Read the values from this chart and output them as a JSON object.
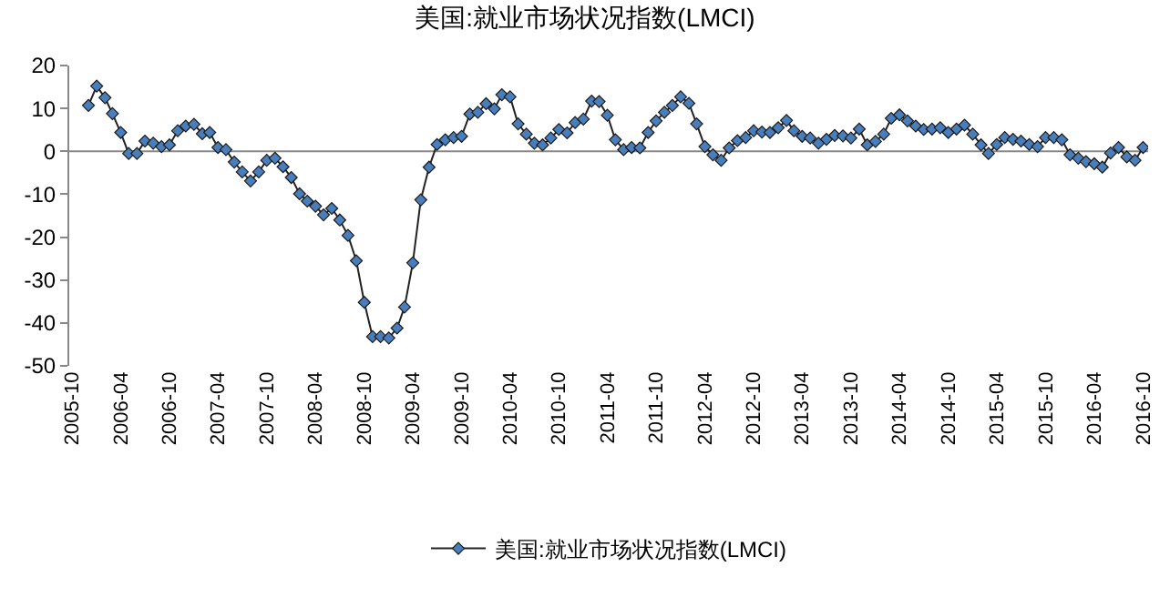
{
  "chart_data": {
    "type": "line",
    "title": "美国:就业市场状况指数(LMCI)",
    "x": [
      "2005-12",
      "2006-01",
      "2006-02",
      "2006-03",
      "2006-04",
      "2006-05",
      "2006-06",
      "2006-07",
      "2006-08",
      "2006-09",
      "2006-10",
      "2006-11",
      "2006-12",
      "2007-01",
      "2007-02",
      "2007-03",
      "2007-04",
      "2007-05",
      "2007-06",
      "2007-07",
      "2007-08",
      "2007-09",
      "2007-10",
      "2007-11",
      "2007-12",
      "2008-01",
      "2008-02",
      "2008-03",
      "2008-04",
      "2008-05",
      "2008-06",
      "2008-07",
      "2008-08",
      "2008-09",
      "2008-10",
      "2008-11",
      "2008-12",
      "2009-01",
      "2009-02",
      "2009-03",
      "2009-04",
      "2009-05",
      "2009-06",
      "2009-07",
      "2009-08",
      "2009-09",
      "2009-10",
      "2009-11",
      "2009-12",
      "2010-01",
      "2010-02",
      "2010-03",
      "2010-04",
      "2010-05",
      "2010-06",
      "2010-07",
      "2010-08",
      "2010-09",
      "2010-10",
      "2010-11",
      "2010-12",
      "2011-01",
      "2011-02",
      "2011-03",
      "2011-04",
      "2011-05",
      "2011-06",
      "2011-07",
      "2011-08",
      "2011-09",
      "2011-10",
      "2011-11",
      "2011-12",
      "2012-01",
      "2012-02",
      "2012-03",
      "2012-04",
      "2012-05",
      "2012-06",
      "2012-07",
      "2012-08",
      "2012-09",
      "2012-10",
      "2012-11",
      "2012-12",
      "2013-01",
      "2013-02",
      "2013-03",
      "2013-04",
      "2013-05",
      "2013-06",
      "2013-07",
      "2013-08",
      "2013-09",
      "2013-10",
      "2013-11",
      "2013-12",
      "2014-01",
      "2014-02",
      "2014-03",
      "2014-04",
      "2014-05",
      "2014-06",
      "2014-07",
      "2014-08",
      "2014-09",
      "2014-10",
      "2014-11",
      "2014-12",
      "2015-01",
      "2015-02",
      "2015-03",
      "2015-04",
      "2015-05",
      "2015-06",
      "2015-07",
      "2015-08",
      "2015-09",
      "2015-10",
      "2015-11",
      "2015-12",
      "2016-01",
      "2016-02",
      "2016-03",
      "2016-04",
      "2016-05",
      "2016-06",
      "2016-07",
      "2016-08",
      "2016-09",
      "2016-10"
    ],
    "series": [
      {
        "name": "美国:就业市场状况指数(LMCI)",
        "color": "#4a7ebb",
        "values": [
          10.7,
          15.2,
          12.5,
          8.8,
          4.4,
          -0.5,
          -0.5,
          2.4,
          1.9,
          1.1,
          1.5,
          4.8,
          5.9,
          6.3,
          4.1,
          4.4,
          0.9,
          0.4,
          -2.5,
          -4.8,
          -6.9,
          -4.8,
          -2.1,
          -1.6,
          -3.6,
          -6.1,
          -9.9,
          -11.6,
          -12.8,
          -14.8,
          -13.3,
          -16.0,
          -19.6,
          -25.5,
          -35.2,
          -43.2,
          -43.2,
          -43.5,
          -41.2,
          -36.3,
          -26.0,
          -11.3,
          -3.7,
          1.6,
          2.7,
          3.2,
          3.5,
          8.7,
          9.1,
          11.1,
          9.9,
          13.2,
          12.7,
          6.4,
          4.0,
          1.9,
          1.5,
          3.1,
          5.1,
          4.3,
          6.7,
          7.5,
          11.7,
          11.6,
          8.4,
          2.7,
          0.4,
          0.9,
          0.8,
          4.4,
          7.1,
          9.1,
          10.7,
          12.7,
          11.2,
          6.4,
          1.1,
          -0.8,
          -2.1,
          0.8,
          2.5,
          3.2,
          4.8,
          4.5,
          4.4,
          5.5,
          7.2,
          4.8,
          3.5,
          3.1,
          1.9,
          2.8,
          3.7,
          3.6,
          3.1,
          5.2,
          1.5,
          2.3,
          4.0,
          7.7,
          8.5,
          7.1,
          5.9,
          5.1,
          5.2,
          5.5,
          4.4,
          5.2,
          6.1,
          4.0,
          1.5,
          -0.5,
          1.6,
          3.2,
          2.8,
          2.4,
          1.6,
          1.1,
          3.2,
          3.2,
          2.7,
          -0.8,
          -1.6,
          -2.4,
          -2.9,
          -3.7,
          -0.4,
          0.9,
          -1.3,
          -2.1,
          0.9
        ]
      }
    ],
    "xlim": [
      "2005-09-20",
      "2016-10-20"
    ],
    "xticks": [
      "2005-10",
      "2006-04",
      "2006-10",
      "2007-04",
      "2007-10",
      "2008-04",
      "2008-10",
      "2009-04",
      "2009-10",
      "2010-04",
      "2010-10",
      "2011-04",
      "2011-10",
      "2012-04",
      "2012-10",
      "2013-04",
      "2013-10",
      "2014-04",
      "2014-10",
      "2015-04",
      "2015-10",
      "2016-04",
      "2016-10"
    ],
    "ylim": [
      -50,
      20
    ],
    "yticks": [
      -50,
      -40,
      -30,
      -20,
      -10,
      0,
      10,
      20
    ],
    "ref_lines": [
      {
        "axis": "y",
        "value": 0,
        "color": "#888888"
      }
    ],
    "legend": "bottom",
    "marker": "diamond",
    "line_style": "solid"
  }
}
